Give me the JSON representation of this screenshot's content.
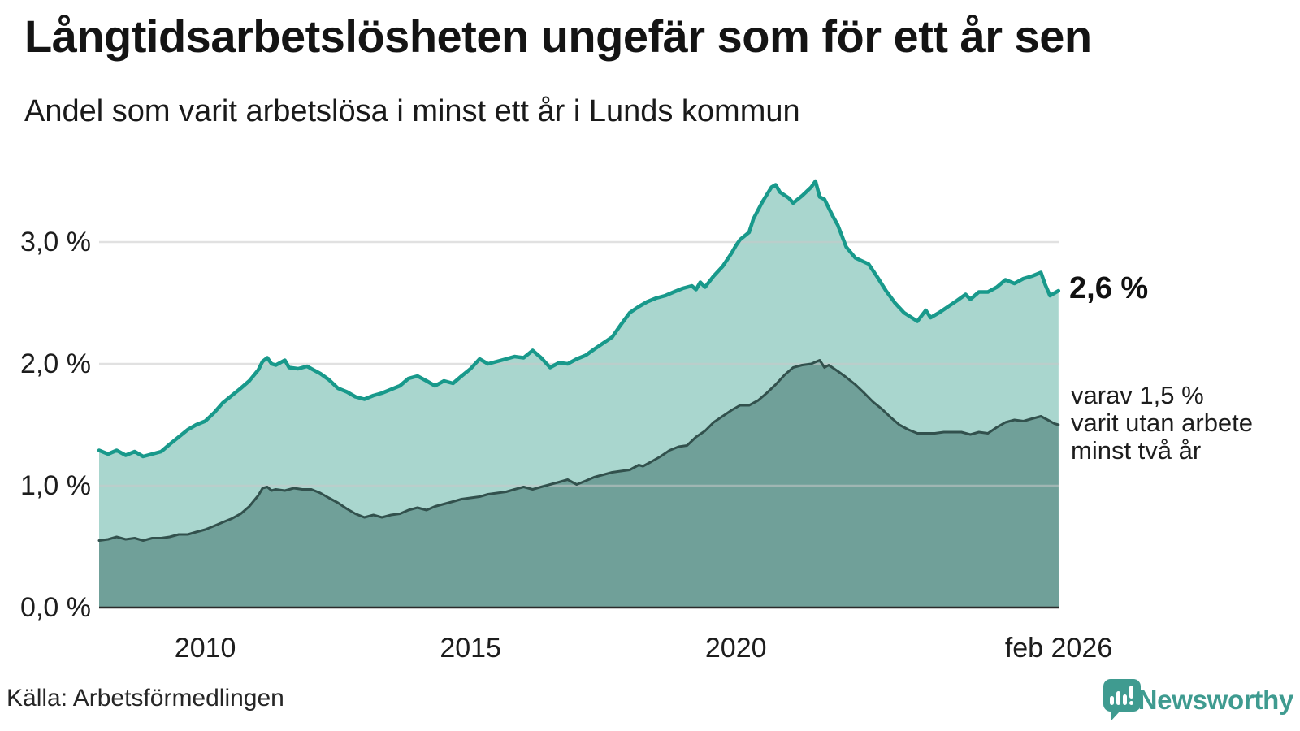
{
  "header": {
    "title": "Långtidsarbetslösheten ungefär som för ett år sen",
    "subtitle": "Andel som varit arbetslösa i minst ett år i Lunds kommun"
  },
  "annotations": {
    "total_end": "2,6 %",
    "two_year": [
      "varav 1,5 %",
      "varit utan arbete",
      "minst två år"
    ]
  },
  "footer": {
    "source": "Källa: Arbetsförmedlingen",
    "brand": "Newsworthy"
  },
  "colors": {
    "teal_line": "#18998b",
    "teal_fill": "#a9d6ce",
    "dark_line": "#32514d",
    "dark_fill": "#70a099",
    "grid": "#c9c9c9",
    "axis": "#2b2b2b",
    "brand": "#3f9b90"
  },
  "chart_data": {
    "type": "area",
    "title": "Långtidsarbetslösheten ungefär som för ett år sen",
    "subtitle": "Andel som varit arbetslösa i minst ett år i Lunds kommun",
    "x_unit": "decimal_year",
    "x_range": [
      2008.0,
      2026.0833
    ],
    "ylim": [
      0,
      3.5
    ],
    "grid": "horizontal",
    "y_ticks": [
      {
        "v": 0,
        "label": "0,0 %"
      },
      {
        "v": 1,
        "label": "1,0 %"
      },
      {
        "v": 2,
        "label": "2,0 %"
      },
      {
        "v": 3,
        "label": "3,0 %"
      }
    ],
    "x_ticks": [
      {
        "t": 2010.0,
        "label": "2010"
      },
      {
        "t": 2015.0,
        "label": "2015"
      },
      {
        "t": 2020.0,
        "label": "2020"
      },
      {
        "t": 2026.0833,
        "label": "feb 2026"
      }
    ],
    "series": [
      {
        "name": "Andel som varit arbetslösa i minst ett år",
        "end_label": "2,6 %",
        "end_value": 2.6,
        "points": [
          [
            2008.0,
            1.29
          ],
          [
            2008.17,
            1.26
          ],
          [
            2008.33,
            1.29
          ],
          [
            2008.5,
            1.25
          ],
          [
            2008.67,
            1.28
          ],
          [
            2008.83,
            1.24
          ],
          [
            2009.0,
            1.26
          ],
          [
            2009.17,
            1.28
          ],
          [
            2009.33,
            1.34
          ],
          [
            2009.5,
            1.4
          ],
          [
            2009.67,
            1.46
          ],
          [
            2009.83,
            1.5
          ],
          [
            2010.0,
            1.53
          ],
          [
            2010.17,
            1.6
          ],
          [
            2010.33,
            1.68
          ],
          [
            2010.5,
            1.74
          ],
          [
            2010.67,
            1.8
          ],
          [
            2010.83,
            1.86
          ],
          [
            2011.0,
            1.95
          ],
          [
            2011.08,
            2.02
          ],
          [
            2011.17,
            2.05
          ],
          [
            2011.25,
            2.0
          ],
          [
            2011.33,
            1.99
          ],
          [
            2011.5,
            2.03
          ],
          [
            2011.58,
            1.97
          ],
          [
            2011.75,
            1.96
          ],
          [
            2011.92,
            1.98
          ],
          [
            2012.0,
            1.96
          ],
          [
            2012.17,
            1.92
          ],
          [
            2012.33,
            1.87
          ],
          [
            2012.5,
            1.8
          ],
          [
            2012.67,
            1.77
          ],
          [
            2012.83,
            1.73
          ],
          [
            2013.0,
            1.71
          ],
          [
            2013.17,
            1.74
          ],
          [
            2013.33,
            1.76
          ],
          [
            2013.5,
            1.79
          ],
          [
            2013.67,
            1.82
          ],
          [
            2013.83,
            1.88
          ],
          [
            2014.0,
            1.9
          ],
          [
            2014.17,
            1.86
          ],
          [
            2014.33,
            1.82
          ],
          [
            2014.5,
            1.86
          ],
          [
            2014.67,
            1.84
          ],
          [
            2014.83,
            1.9
          ],
          [
            2015.0,
            1.96
          ],
          [
            2015.17,
            2.04
          ],
          [
            2015.33,
            2.0
          ],
          [
            2015.5,
            2.02
          ],
          [
            2015.67,
            2.04
          ],
          [
            2015.83,
            2.06
          ],
          [
            2016.0,
            2.05
          ],
          [
            2016.17,
            2.11
          ],
          [
            2016.33,
            2.05
          ],
          [
            2016.5,
            1.97
          ],
          [
            2016.67,
            2.01
          ],
          [
            2016.83,
            2.0
          ],
          [
            2017.0,
            2.04
          ],
          [
            2017.17,
            2.07
          ],
          [
            2017.33,
            2.12
          ],
          [
            2017.5,
            2.17
          ],
          [
            2017.67,
            2.22
          ],
          [
            2017.83,
            2.32
          ],
          [
            2018.0,
            2.42
          ],
          [
            2018.17,
            2.47
          ],
          [
            2018.33,
            2.51
          ],
          [
            2018.5,
            2.54
          ],
          [
            2018.67,
            2.56
          ],
          [
            2018.83,
            2.59
          ],
          [
            2019.0,
            2.62
          ],
          [
            2019.17,
            2.64
          ],
          [
            2019.25,
            2.61
          ],
          [
            2019.33,
            2.67
          ],
          [
            2019.42,
            2.63
          ],
          [
            2019.58,
            2.72
          ],
          [
            2019.75,
            2.8
          ],
          [
            2019.92,
            2.91
          ],
          [
            2020.0,
            2.97
          ],
          [
            2020.08,
            3.02
          ],
          [
            2020.25,
            3.08
          ],
          [
            2020.33,
            3.19
          ],
          [
            2020.5,
            3.33
          ],
          [
            2020.67,
            3.45
          ],
          [
            2020.75,
            3.47
          ],
          [
            2020.83,
            3.41
          ],
          [
            2021.0,
            3.36
          ],
          [
            2021.08,
            3.32
          ],
          [
            2021.25,
            3.38
          ],
          [
            2021.42,
            3.45
          ],
          [
            2021.5,
            3.5
          ],
          [
            2021.58,
            3.37
          ],
          [
            2021.67,
            3.35
          ],
          [
            2021.75,
            3.28
          ],
          [
            2021.83,
            3.21
          ],
          [
            2021.92,
            3.14
          ],
          [
            2022.08,
            2.96
          ],
          [
            2022.25,
            2.87
          ],
          [
            2022.5,
            2.82
          ],
          [
            2022.67,
            2.71
          ],
          [
            2022.83,
            2.6
          ],
          [
            2023.0,
            2.5
          ],
          [
            2023.17,
            2.42
          ],
          [
            2023.42,
            2.35
          ],
          [
            2023.58,
            2.44
          ],
          [
            2023.67,
            2.38
          ],
          [
            2023.83,
            2.42
          ],
          [
            2024.0,
            2.47
          ],
          [
            2024.17,
            2.52
          ],
          [
            2024.33,
            2.57
          ],
          [
            2024.42,
            2.53
          ],
          [
            2024.58,
            2.59
          ],
          [
            2024.75,
            2.59
          ],
          [
            2024.92,
            2.63
          ],
          [
            2025.08,
            2.69
          ],
          [
            2025.25,
            2.66
          ],
          [
            2025.42,
            2.7
          ],
          [
            2025.58,
            2.72
          ],
          [
            2025.75,
            2.75
          ],
          [
            2025.83,
            2.65
          ],
          [
            2025.92,
            2.56
          ],
          [
            2026.0,
            2.58
          ],
          [
            2026.08,
            2.6
          ]
        ]
      },
      {
        "name": "varav utan arbete minst två år",
        "end_label": "varav 1,5 % varit utan arbete minst två år",
        "end_value": 1.5,
        "points": [
          [
            2008.0,
            0.55
          ],
          [
            2008.17,
            0.56
          ],
          [
            2008.33,
            0.58
          ],
          [
            2008.5,
            0.56
          ],
          [
            2008.67,
            0.57
          ],
          [
            2008.83,
            0.55
          ],
          [
            2009.0,
            0.57
          ],
          [
            2009.17,
            0.57
          ],
          [
            2009.33,
            0.58
          ],
          [
            2009.5,
            0.6
          ],
          [
            2009.67,
            0.6
          ],
          [
            2009.83,
            0.62
          ],
          [
            2010.0,
            0.64
          ],
          [
            2010.17,
            0.67
          ],
          [
            2010.33,
            0.7
          ],
          [
            2010.5,
            0.73
          ],
          [
            2010.67,
            0.77
          ],
          [
            2010.83,
            0.83
          ],
          [
            2011.0,
            0.92
          ],
          [
            2011.08,
            0.98
          ],
          [
            2011.17,
            0.99
          ],
          [
            2011.25,
            0.96
          ],
          [
            2011.33,
            0.97
          ],
          [
            2011.5,
            0.96
          ],
          [
            2011.67,
            0.98
          ],
          [
            2011.83,
            0.97
          ],
          [
            2012.0,
            0.97
          ],
          [
            2012.17,
            0.94
          ],
          [
            2012.33,
            0.9
          ],
          [
            2012.5,
            0.86
          ],
          [
            2012.67,
            0.81
          ],
          [
            2012.83,
            0.77
          ],
          [
            2013.0,
            0.74
          ],
          [
            2013.17,
            0.76
          ],
          [
            2013.33,
            0.74
          ],
          [
            2013.5,
            0.76
          ],
          [
            2013.67,
            0.77
          ],
          [
            2013.83,
            0.8
          ],
          [
            2014.0,
            0.82
          ],
          [
            2014.17,
            0.8
          ],
          [
            2014.33,
            0.83
          ],
          [
            2014.5,
            0.85
          ],
          [
            2014.67,
            0.87
          ],
          [
            2014.83,
            0.89
          ],
          [
            2015.0,
            0.9
          ],
          [
            2015.17,
            0.91
          ],
          [
            2015.33,
            0.93
          ],
          [
            2015.5,
            0.94
          ],
          [
            2015.67,
            0.95
          ],
          [
            2015.83,
            0.97
          ],
          [
            2016.0,
            0.99
          ],
          [
            2016.17,
            0.97
          ],
          [
            2016.33,
            0.99
          ],
          [
            2016.5,
            1.01
          ],
          [
            2016.67,
            1.03
          ],
          [
            2016.83,
            1.05
          ],
          [
            2017.0,
            1.01
          ],
          [
            2017.17,
            1.04
          ],
          [
            2017.33,
            1.07
          ],
          [
            2017.5,
            1.09
          ],
          [
            2017.67,
            1.11
          ],
          [
            2017.83,
            1.12
          ],
          [
            2018.0,
            1.13
          ],
          [
            2018.17,
            1.17
          ],
          [
            2018.25,
            1.16
          ],
          [
            2018.42,
            1.2
          ],
          [
            2018.58,
            1.24
          ],
          [
            2018.75,
            1.29
          ],
          [
            2018.92,
            1.32
          ],
          [
            2019.08,
            1.33
          ],
          [
            2019.25,
            1.4
          ],
          [
            2019.42,
            1.45
          ],
          [
            2019.58,
            1.52
          ],
          [
            2019.75,
            1.57
          ],
          [
            2019.92,
            1.62
          ],
          [
            2020.08,
            1.66
          ],
          [
            2020.25,
            1.66
          ],
          [
            2020.42,
            1.7
          ],
          [
            2020.58,
            1.76
          ],
          [
            2020.75,
            1.83
          ],
          [
            2020.92,
            1.91
          ],
          [
            2021.08,
            1.97
          ],
          [
            2021.25,
            1.99
          ],
          [
            2021.42,
            2.0
          ],
          [
            2021.58,
            2.03
          ],
          [
            2021.67,
            1.97
          ],
          [
            2021.75,
            1.99
          ],
          [
            2021.92,
            1.94
          ],
          [
            2022.08,
            1.89
          ],
          [
            2022.25,
            1.83
          ],
          [
            2022.42,
            1.76
          ],
          [
            2022.58,
            1.69
          ],
          [
            2022.75,
            1.63
          ],
          [
            2022.92,
            1.56
          ],
          [
            2023.08,
            1.5
          ],
          [
            2023.25,
            1.46
          ],
          [
            2023.42,
            1.43
          ],
          [
            2023.58,
            1.43
          ],
          [
            2023.75,
            1.43
          ],
          [
            2023.92,
            1.44
          ],
          [
            2024.08,
            1.44
          ],
          [
            2024.25,
            1.44
          ],
          [
            2024.42,
            1.42
          ],
          [
            2024.58,
            1.44
          ],
          [
            2024.75,
            1.43
          ],
          [
            2024.92,
            1.48
          ],
          [
            2025.08,
            1.52
          ],
          [
            2025.25,
            1.54
          ],
          [
            2025.42,
            1.53
          ],
          [
            2025.58,
            1.55
          ],
          [
            2025.75,
            1.57
          ],
          [
            2025.92,
            1.53
          ],
          [
            2026.0,
            1.51
          ],
          [
            2026.08,
            1.5
          ]
        ]
      }
    ]
  }
}
